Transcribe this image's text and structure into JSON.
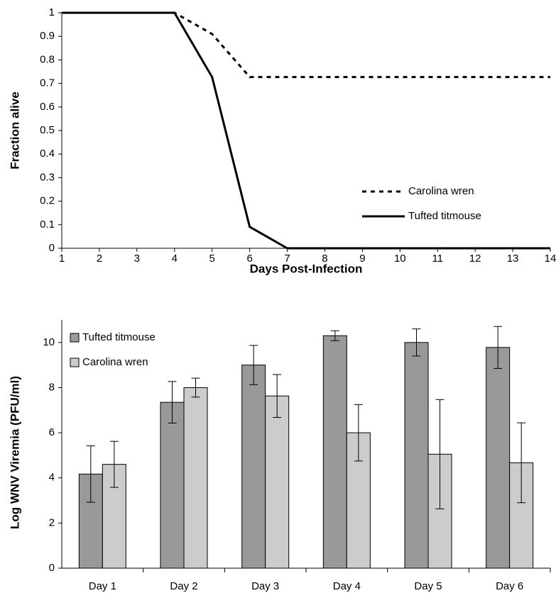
{
  "chart_data": [
    {
      "type": "line",
      "y_label": "Fraction alive",
      "x_label": "Days Post-Infection",
      "x": [
        1,
        2,
        3,
        4,
        5,
        6,
        7,
        8,
        9,
        10,
        11,
        12,
        13,
        14
      ],
      "xlim": [
        1,
        14
      ],
      "xticks": [
        1,
        2,
        3,
        4,
        5,
        6,
        7,
        8,
        9,
        10,
        11,
        12,
        13,
        14
      ],
      "ylim": [
        0,
        1
      ],
      "yticks": [
        0,
        0.1,
        0.2,
        0.3,
        0.4,
        0.5,
        0.6,
        0.7,
        0.8,
        0.9,
        1
      ],
      "legend": "lower right",
      "series": [
        {
          "name": "Carolina wren",
          "color": "#000000",
          "line_style": "dashed",
          "values": [
            1,
            1,
            1,
            1,
            0.91,
            0.727,
            0.727,
            0.727,
            0.727,
            0.727,
            0.727,
            0.727,
            0.727,
            0.727
          ]
        },
        {
          "name": "Tufted titmouse",
          "color": "#000000",
          "line_style": "solid",
          "values": [
            1,
            1,
            1,
            1,
            0.727,
            0.091,
            0,
            0,
            0,
            0,
            0,
            0,
            0,
            0
          ]
        }
      ]
    },
    {
      "type": "bar",
      "y_label": "Log WNV Viremia (PFU/ml)",
      "categories": [
        "Day 1",
        "Day 2",
        "Day 3",
        "Day 4",
        "Day 5",
        "Day 6"
      ],
      "ylim": [
        0,
        11
      ],
      "yticks": [
        0,
        2,
        4,
        6,
        8,
        10
      ],
      "legend": "upper left",
      "series": [
        {
          "name": "Tufted titmouse",
          "color": "#999999",
          "values": [
            4.17,
            7.35,
            9.0,
            10.3,
            10.0,
            9.78
          ],
          "errors": [
            1.25,
            0.92,
            0.87,
            0.22,
            0.6,
            0.93
          ]
        },
        {
          "name": "Carolina wren",
          "color": "#cccccc",
          "values": [
            4.6,
            8.0,
            7.63,
            6.0,
            5.05,
            4.67
          ],
          "errors": [
            1.02,
            0.42,
            0.95,
            1.25,
            2.42,
            1.77
          ]
        }
      ]
    }
  ]
}
